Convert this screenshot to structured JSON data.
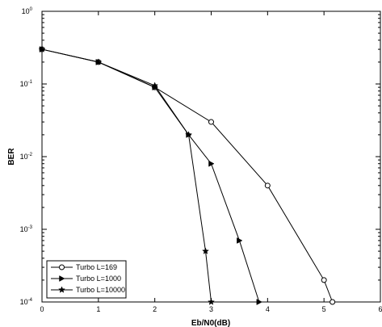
{
  "chart_data": {
    "type": "line",
    "title": "",
    "xlabel": "Eb/N0(dB)",
    "ylabel": "BER",
    "xlim": [
      0,
      6
    ],
    "ylim": [
      0.0001,
      1
    ],
    "yscale": "log",
    "grid": false,
    "legend_position": "bottom-left",
    "x_ticks": [
      "0",
      "1",
      "2",
      "3",
      "4",
      "5",
      "6"
    ],
    "y_ticks": [
      {
        "base": "10",
        "exp": "0",
        "value": 1
      },
      {
        "base": "10",
        "exp": "-1",
        "value": 0.1
      },
      {
        "base": "10",
        "exp": "-2",
        "value": 0.01
      },
      {
        "base": "10",
        "exp": "-3",
        "value": 0.001
      },
      {
        "base": "10",
        "exp": "-4",
        "value": 0.0001
      }
    ],
    "series": [
      {
        "name": "Turbo L=169",
        "marker": "circle",
        "x": [
          0,
          1,
          2,
          3,
          4,
          5,
          5.15
        ],
        "y": [
          0.3,
          0.2,
          0.09,
          0.03,
          0.004,
          0.0002,
          0.0001
        ]
      },
      {
        "name": "Turbo L=1000",
        "marker": "triangle-right",
        "x": [
          0,
          1,
          2,
          2.6,
          3,
          3.5,
          3.85
        ],
        "y": [
          0.3,
          0.2,
          0.09,
          0.02,
          0.008,
          0.0007,
          0.0001
        ]
      },
      {
        "name": "Turbo L=10000",
        "marker": "star",
        "x": [
          0,
          1,
          2,
          2.6,
          2.9,
          3
        ],
        "y": [
          0.3,
          0.2,
          0.095,
          0.02,
          0.0005,
          0.0001
        ]
      }
    ]
  }
}
